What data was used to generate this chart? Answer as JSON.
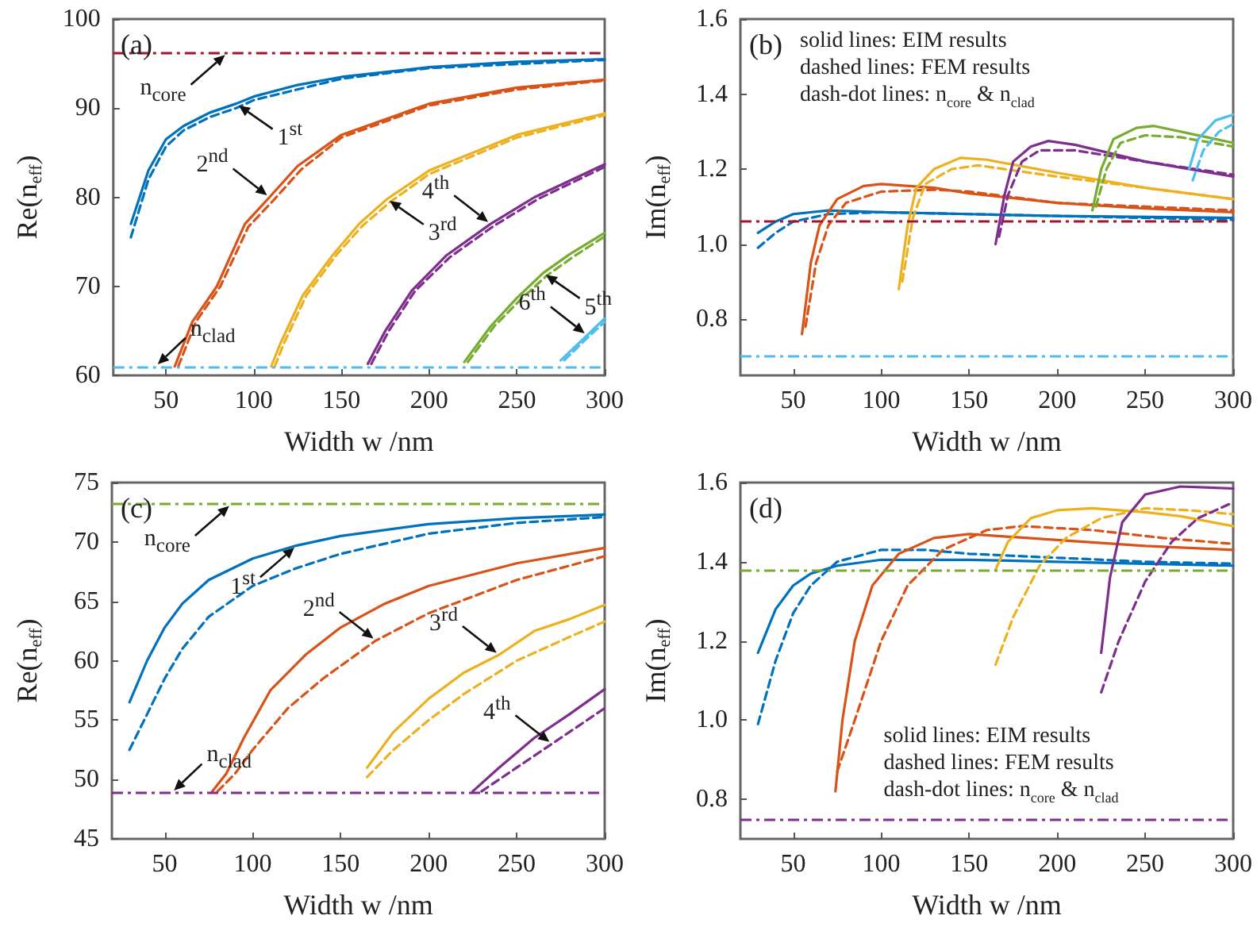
{
  "chart_data": [
    {
      "type": "line",
      "title": "(a)",
      "xlabel": "Width w /nm",
      "ylabel": "Re(n$_{eff}$)",
      "xlim": [
        20,
        300
      ],
      "xticks": [
        50,
        100,
        150,
        200,
        250,
        300
      ],
      "ylim": [
        60,
        100
      ],
      "yticks": [
        60,
        70,
        80,
        90,
        100
      ],
      "series": [
        {
          "color": "#0072bd",
          "line_style": "solid",
          "x": [
            30,
            40,
            50,
            60,
            75,
            90,
            100,
            125,
            150,
            200,
            250,
            300
          ],
          "values": [
            77,
            83,
            86.5,
            88,
            89.5,
            90.5,
            91.3,
            92.6,
            93.5,
            94.6,
            95.2,
            95.5
          ]
        },
        {
          "color": "#0072bd",
          "line_style": "dashed",
          "x": [
            30,
            40,
            50,
            60,
            75,
            90,
            100,
            150,
            200,
            300
          ],
          "values": [
            75.5,
            82,
            85.7,
            87.5,
            89,
            90,
            90.9,
            93.3,
            94.5,
            95.4
          ]
        },
        {
          "color": "#d95319",
          "line_style": "solid",
          "x": [
            55,
            65,
            79,
            95,
            109,
            125,
            150,
            200,
            250,
            300
          ],
          "values": [
            61,
            66,
            70,
            77,
            80,
            83.5,
            87,
            90.5,
            92.3,
            93.2
          ]
        },
        {
          "color": "#d95319",
          "line_style": "dashed",
          "x": [
            57,
            67,
            81,
            97,
            111,
            127,
            150,
            200,
            250,
            300
          ],
          "values": [
            61,
            66,
            70,
            76.7,
            79.6,
            83.1,
            86.7,
            90.3,
            92.1,
            93.1
          ]
        },
        {
          "color": "#edb120",
          "line_style": "solid",
          "x": [
            110,
            115,
            128,
            145,
            160,
            176,
            200,
            250,
            300
          ],
          "values": [
            61,
            63.5,
            69,
            73.5,
            77,
            79.8,
            83,
            87,
            89.4
          ]
        },
        {
          "color": "#edb120",
          "line_style": "dashed",
          "x": [
            112,
            117,
            130,
            147,
            162,
            178,
            200,
            250,
            300
          ],
          "values": [
            61,
            63.5,
            69,
            73.5,
            76.8,
            79.5,
            82.6,
            86.7,
            89.2
          ]
        },
        {
          "color": "#7e2f8e",
          "line_style": "solid",
          "x": [
            165,
            175,
            190,
            210,
            235,
            260,
            300
          ],
          "values": [
            61.3,
            65,
            69.5,
            73.5,
            77,
            80,
            83.7
          ]
        },
        {
          "color": "#7e2f8e",
          "line_style": "dashed",
          "x": [
            167,
            177,
            192,
            212,
            237,
            262,
            300
          ],
          "values": [
            61.3,
            65,
            69.5,
            73.3,
            76.8,
            79.8,
            83.4
          ]
        },
        {
          "color": "#77ac30",
          "line_style": "solid",
          "x": [
            220,
            235,
            250,
            265,
            280,
            300
          ],
          "values": [
            61.5,
            65.5,
            68.7,
            71.5,
            73.6,
            76
          ]
        },
        {
          "color": "#77ac30",
          "line_style": "dashed",
          "x": [
            222,
            237,
            252,
            267,
            282,
            300
          ],
          "values": [
            61.5,
            65.5,
            68.5,
            71.2,
            73.3,
            75.6
          ]
        },
        {
          "color": "#4dbeee",
          "line_style": "solid",
          "x": [
            275,
            290,
            300
          ],
          "values": [
            61.7,
            64.5,
            66.4
          ]
        },
        {
          "color": "#4dbeee",
          "line_style": "dashed",
          "x": [
            277,
            290,
            300
          ],
          "values": [
            61.7,
            64.2,
            66
          ]
        }
      ],
      "ref_lines": [
        {
          "axis": "y",
          "value": 96.2,
          "color": "#a2142f",
          "line_style": "dashed"
        },
        {
          "axis": "y",
          "value": 61,
          "color": "#4dbeee",
          "line_style": "dashed"
        }
      ],
      "annotations": [
        {
          "text": "n$_{core}$",
          "x": 85,
          "y": 96.2
        },
        {
          "text": "1$^{st}$",
          "x": 90,
          "y": 90.5
        },
        {
          "text": "2$^{nd}$",
          "x": 109,
          "y": 80
        },
        {
          "text": "3$^{rd}$",
          "x": 176,
          "y": 79.8
        },
        {
          "text": "4$^{th}$",
          "x": 235,
          "y": 77
        },
        {
          "text": "5$^{th}$",
          "x": 265,
          "y": 71.5
        },
        {
          "text": "6$^{th}$",
          "x": 290,
          "y": 64.5
        },
        {
          "text": "n$_{clad}$",
          "x": 44,
          "y": 61
        }
      ]
    },
    {
      "type": "line",
      "title": "(b)",
      "xlabel": "Width w /nm",
      "ylabel": "Im(n$_{eff}$)",
      "xlim": [
        20,
        300
      ],
      "xticks": [
        50,
        100,
        150,
        200,
        250,
        300
      ],
      "ylim": [
        0.65,
        1.6
      ],
      "yticks": [
        0.8,
        {
          "value": 1,
          "label": "1.0"
        },
        1.2,
        1.4,
        1.6
      ],
      "series": [
        {
          "color": "#0072bd",
          "line_style": "solid",
          "x": [
            30,
            40,
            50,
            70,
            100,
            150,
            200,
            300
          ],
          "values": [
            1.03,
            1.06,
            1.08,
            1.09,
            1.085,
            1.08,
            1.075,
            1.07
          ]
        },
        {
          "color": "#0072bd",
          "line_style": "dashed",
          "x": [
            30,
            40,
            50,
            70,
            100,
            150,
            300
          ],
          "values": [
            0.99,
            1.03,
            1.06,
            1.08,
            1.085,
            1.08,
            1.065
          ]
        },
        {
          "color": "#d95319",
          "line_style": "solid",
          "x": [
            55,
            60,
            65,
            75,
            90,
            100,
            130,
            150,
            200,
            250,
            300
          ],
          "values": [
            0.76,
            0.95,
            1.05,
            1.12,
            1.155,
            1.16,
            1.15,
            1.135,
            1.11,
            1.095,
            1.085
          ]
        },
        {
          "color": "#d95319",
          "line_style": "dashed",
          "x": [
            57,
            63,
            70,
            80,
            100,
            130,
            150,
            200,
            300
          ],
          "values": [
            0.78,
            0.95,
            1.05,
            1.11,
            1.14,
            1.145,
            1.14,
            1.11,
            1.09
          ]
        },
        {
          "color": "#edb120",
          "line_style": "solid",
          "x": [
            110,
            115,
            120,
            130,
            145,
            160,
            200,
            250,
            300
          ],
          "values": [
            0.88,
            1.05,
            1.15,
            1.2,
            1.23,
            1.225,
            1.19,
            1.15,
            1.12
          ]
        },
        {
          "color": "#edb120",
          "line_style": "dashed",
          "x": [
            112,
            118,
            125,
            140,
            155,
            200,
            250,
            300
          ],
          "values": [
            0.9,
            1.07,
            1.16,
            1.2,
            1.21,
            1.18,
            1.15,
            1.12
          ]
        },
        {
          "color": "#7e2f8e",
          "line_style": "solid",
          "x": [
            165,
            170,
            175,
            185,
            195,
            210,
            250,
            300
          ],
          "values": [
            1,
            1.13,
            1.22,
            1.26,
            1.275,
            1.265,
            1.22,
            1.18
          ]
        },
        {
          "color": "#7e2f8e",
          "line_style": "dashed",
          "x": [
            167,
            172,
            180,
            190,
            210,
            250,
            300
          ],
          "values": [
            1.02,
            1.13,
            1.22,
            1.25,
            1.25,
            1.22,
            1.185
          ]
        },
        {
          "color": "#77ac30",
          "line_style": "solid",
          "x": [
            220,
            225,
            232,
            245,
            255,
            270,
            300
          ],
          "values": [
            1.09,
            1.2,
            1.28,
            1.31,
            1.315,
            1.3,
            1.27
          ]
        },
        {
          "color": "#77ac30",
          "line_style": "dashed",
          "x": [
            222,
            228,
            236,
            250,
            270,
            300
          ],
          "values": [
            1.1,
            1.2,
            1.27,
            1.29,
            1.285,
            1.26
          ]
        },
        {
          "color": "#4dbeee",
          "line_style": "solid",
          "x": [
            275,
            280,
            290,
            300
          ],
          "values": [
            1.2,
            1.28,
            1.33,
            1.345
          ]
        },
        {
          "color": "#4dbeee",
          "line_style": "dashed",
          "x": [
            277,
            283,
            292,
            300
          ],
          "values": [
            1.17,
            1.25,
            1.3,
            1.32
          ]
        }
      ],
      "ref_lines": [
        {
          "axis": "y",
          "value": 1.06,
          "color": "#a2142f",
          "line_style": "dashed"
        },
        {
          "axis": "y",
          "value": 0.7,
          "color": "#4dbeee",
          "line_style": "dashed"
        }
      ],
      "annotations": [
        "solid lines: EIM results",
        "dashed lines: FEM results",
        "dash-dot lines: n$_{core}$ & n$_{clad}$"
      ]
    },
    {
      "type": "line",
      "title": "(c)",
      "xlabel": "Width w /nm",
      "ylabel": "Re(n$_{eff}$)",
      "xlim": [
        20,
        300
      ],
      "xticks": [
        50,
        100,
        150,
        200,
        250,
        300
      ],
      "ylim": [
        45,
        75
      ],
      "yticks": [
        45,
        50,
        55,
        60,
        65,
        70,
        75
      ],
      "series": [
        {
          "color": "#0072bd",
          "line_style": "solid",
          "x": [
            30,
            40,
            50,
            60,
            75,
            100,
            125,
            150,
            200,
            250,
            300
          ],
          "values": [
            56.5,
            60,
            62.8,
            64.8,
            66.8,
            68.6,
            69.7,
            70.5,
            71.5,
            72,
            72.3
          ]
        },
        {
          "color": "#0072bd",
          "line_style": "dashed",
          "x": [
            30,
            40,
            50,
            60,
            75,
            100,
            125,
            150,
            200,
            250,
            300
          ],
          "values": [
            52.5,
            55.5,
            58.5,
            61,
            63.7,
            66.3,
            67.8,
            69,
            70.7,
            71.6,
            72.1
          ]
        },
        {
          "color": "#d95319",
          "line_style": "solid",
          "x": [
            77,
            85,
            95,
            110,
            130,
            150,
            175,
            200,
            250,
            300
          ],
          "values": [
            49,
            50.5,
            53.5,
            57.5,
            60.5,
            62.8,
            64.8,
            66.3,
            68.2,
            69.5
          ]
        },
        {
          "color": "#d95319",
          "line_style": "dashed",
          "x": [
            80,
            90,
            100,
            120,
            140,
            170,
            200,
            250,
            300
          ],
          "values": [
            49,
            50.5,
            52.5,
            56,
            58.5,
            61.7,
            64,
            66.8,
            68.8
          ]
        },
        {
          "color": "#edb120",
          "line_style": "solid",
          "x": [
            165,
            180,
            200,
            220,
            240,
            260,
            280,
            300
          ],
          "values": [
            51,
            54,
            56.8,
            59,
            60.5,
            62.5,
            63.5,
            64.7
          ]
        },
        {
          "color": "#edb120",
          "line_style": "dashed",
          "x": [
            165,
            180,
            200,
            220,
            250,
            280,
            300
          ],
          "values": [
            50.2,
            52.5,
            55,
            57.2,
            60,
            62,
            63.3
          ]
        },
        {
          "color": "#7e2f8e",
          "line_style": "solid",
          "x": [
            225,
            240,
            260,
            280,
            300
          ],
          "values": [
            49,
            51,
            53.5,
            55.5,
            57.6
          ]
        },
        {
          "color": "#7e2f8e",
          "line_style": "dashed",
          "x": [
            230,
            250,
            270,
            285,
            300
          ],
          "values": [
            49,
            51,
            53,
            54.5,
            56
          ]
        }
      ],
      "ref_lines": [
        {
          "axis": "y",
          "value": 73.2,
          "color": "#77ac30",
          "line_style": "dashed"
        },
        {
          "axis": "y",
          "value": 48.9,
          "color": "#7e2f8e",
          "line_style": "dashed"
        }
      ],
      "annotations": [
        {
          "text": "n$_{core}$",
          "x": 88,
          "y": 73.2
        },
        {
          "text": "1$^{st}$",
          "x": 125,
          "y": 69.7
        },
        {
          "text": "2$^{nd}$",
          "x": 170,
          "y": 61.7
        },
        {
          "text": "3$^{rd}$",
          "x": 240,
          "y": 60.5
        },
        {
          "text": "4$^{th}$",
          "x": 270,
          "y": 53
        },
        {
          "text": "n$_{clad}$",
          "x": 54,
          "y": 48.9
        }
      ]
    },
    {
      "type": "line",
      "title": "(d)",
      "xlabel": "Width w /nm",
      "ylabel": "Im(n$_{eff}$)",
      "xlim": [
        20,
        300
      ],
      "xticks": [
        50,
        100,
        150,
        200,
        250,
        300
      ],
      "ylim": [
        0.7,
        1.6
      ],
      "yticks": [
        0.8,
        {
          "value": 1,
          "label": "1.0"
        },
        1.2,
        1.4,
        1.6
      ],
      "series": [
        {
          "color": "#0072bd",
          "line_style": "solid",
          "x": [
            30,
            40,
            50,
            60,
            75,
            100,
            150,
            200,
            300
          ],
          "values": [
            1.17,
            1.28,
            1.34,
            1.37,
            1.39,
            1.405,
            1.405,
            1.4,
            1.39
          ]
        },
        {
          "color": "#0072bd",
          "line_style": "dashed",
          "x": [
            30,
            40,
            50,
            60,
            75,
            100,
            125,
            150,
            200,
            250,
            300
          ],
          "values": [
            0.99,
            1.15,
            1.27,
            1.34,
            1.4,
            1.43,
            1.43,
            1.42,
            1.41,
            1.4,
            1.395
          ]
        },
        {
          "color": "#d95319",
          "line_style": "solid",
          "x": [
            74,
            78,
            85,
            95,
            110,
            130,
            150,
            200,
            250,
            300
          ],
          "values": [
            0.82,
            1,
            1.2,
            1.34,
            1.42,
            1.46,
            1.47,
            1.455,
            1.44,
            1.43
          ]
        },
        {
          "color": "#d95319",
          "line_style": "dashed",
          "x": [
            75,
            85,
            100,
            115,
            135,
            160,
            180,
            220,
            260,
            300
          ],
          "values": [
            0.87,
            1,
            1.2,
            1.34,
            1.43,
            1.48,
            1.49,
            1.48,
            1.46,
            1.445
          ]
        },
        {
          "color": "#edb120",
          "line_style": "solid",
          "x": [
            165,
            172,
            185,
            200,
            220,
            250,
            270,
            300
          ],
          "values": [
            1.38,
            1.45,
            1.51,
            1.53,
            1.535,
            1.525,
            1.515,
            1.49
          ]
        },
        {
          "color": "#edb120",
          "line_style": "dashed",
          "x": [
            165,
            175,
            190,
            205,
            225,
            250,
            275,
            300
          ],
          "values": [
            1.14,
            1.26,
            1.39,
            1.46,
            1.51,
            1.535,
            1.53,
            1.52
          ]
        },
        {
          "color": "#7e2f8e",
          "line_style": "solid",
          "x": [
            225,
            230,
            237,
            250,
            270,
            300
          ],
          "values": [
            1.17,
            1.36,
            1.5,
            1.57,
            1.59,
            1.585
          ]
        },
        {
          "color": "#7e2f8e",
          "line_style": "dashed",
          "x": [
            225,
            235,
            250,
            265,
            280,
            300
          ],
          "values": [
            1.07,
            1.2,
            1.35,
            1.45,
            1.51,
            1.55
          ]
        }
      ],
      "ref_lines": [
        {
          "axis": "y",
          "value": 1.38,
          "color": "#77ac30",
          "line_style": "dashed"
        },
        {
          "axis": "y",
          "value": 0.75,
          "color": "#7e2f8e",
          "line_style": "dashed"
        }
      ],
      "annotations": [
        "solid lines: EIM results",
        "dashed lines: FEM results",
        "dash-dot lines: n$_{core}$ & n$_{clad}$"
      ]
    }
  ]
}
